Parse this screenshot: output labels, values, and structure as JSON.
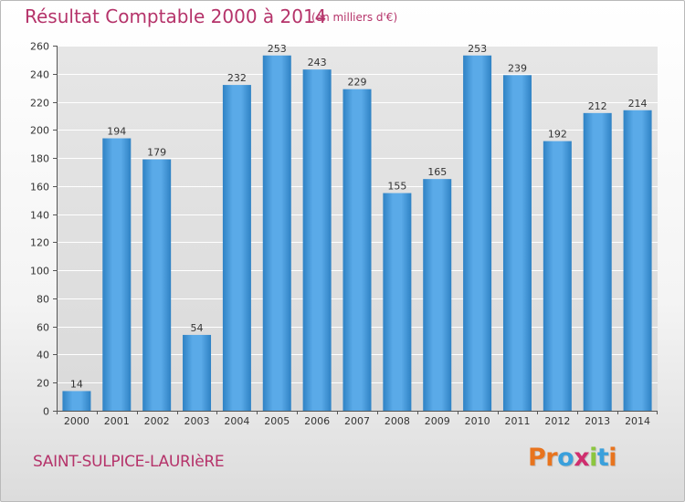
{
  "title": "Résultat Comptable 2000 à 2014",
  "subtitle": "(en milliers d'€)",
  "commune": "SAINT-SULPICE-LAURIèRE",
  "logo": {
    "letters": [
      "P",
      "r",
      "o",
      "x",
      "i",
      "t",
      "i"
    ],
    "colors": [
      "#e8741e",
      "#e8741e",
      "#3aa0dc",
      "#cf2e6e",
      "#8cc63f",
      "#3aa0dc",
      "#e8741e"
    ]
  },
  "colors": {
    "bar": "#4a9ede",
    "bar_light": "#6cb5ef",
    "bar_dark": "#2e7fc0",
    "grid": "#ffffff",
    "text": "#333333",
    "accent": "#b5336a"
  },
  "chart_data": {
    "type": "bar",
    "title": "Résultat Comptable 2000 à 2014",
    "subtitle": "(en milliers d'€)",
    "categories": [
      "2000",
      "2001",
      "2002",
      "2003",
      "2004",
      "2005",
      "2006",
      "2007",
      "2008",
      "2009",
      "2010",
      "2011",
      "2012",
      "2013",
      "2014"
    ],
    "values": [
      14,
      194,
      179,
      54,
      232,
      253,
      243,
      229,
      155,
      165,
      253,
      239,
      192,
      212,
      214
    ],
    "ylim": [
      0,
      260
    ],
    "yticks": [
      0,
      20,
      40,
      60,
      80,
      100,
      120,
      140,
      160,
      180,
      200,
      220,
      240,
      260
    ],
    "xlabel": "",
    "ylabel": "",
    "grid": true
  }
}
